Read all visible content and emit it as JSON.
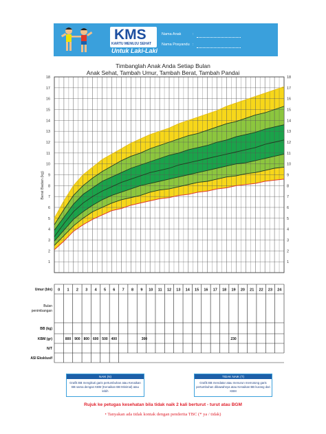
{
  "header": {
    "logo_title": "KMS",
    "logo_subtitle": "KARTU MENUJU SEHAT",
    "logo_gender": "Untuk Laki-Laki",
    "name_label": "Nama Anak",
    "posyandu_label": "Nama Posyandu",
    "colon": ":"
  },
  "chart_title_line1": "Timbanglah Anak Anda Setiap Bulan",
  "chart_title_line2": "Anak Sehat, Tambah Umur, Tambah Berat, Tambah Pandai",
  "chart_data": {
    "type": "area",
    "xlabel": "Umur (bln)",
    "ylabel": "Berat Badan (kg)",
    "xlim": [
      0,
      24
    ],
    "ylim": [
      0,
      18
    ],
    "x_ticks": [
      0,
      1,
      2,
      3,
      4,
      5,
      6,
      7,
      8,
      9,
      10,
      11,
      12,
      13,
      14,
      15,
      16,
      17,
      18,
      19,
      20,
      21,
      22,
      23,
      24
    ],
    "y_ticks": [
      1,
      2,
      3,
      4,
      5,
      6,
      7,
      8,
      9,
      10,
      11,
      12,
      13,
      14,
      15,
      16,
      17,
      18
    ],
    "grid": true,
    "x": [
      0,
      1,
      2,
      3,
      4,
      5,
      6,
      7,
      8,
      9,
      10,
      11,
      12,
      13,
      14,
      15,
      16,
      17,
      18,
      19,
      20,
      21,
      22,
      23,
      24
    ],
    "series": [
      {
        "values": [
          2.1,
          2.9,
          3.8,
          4.4,
          4.9,
          5.3,
          5.7,
          5.9,
          6.2,
          6.4,
          6.6,
          6.8,
          6.9,
          7.1,
          7.2,
          7.4,
          7.5,
          7.7,
          7.8,
          8.0,
          8.1,
          8.2,
          8.4,
          8.5,
          8.6
        ],
        "color": "#e03a2a"
      },
      {
        "values": [
          2.5,
          3.4,
          4.3,
          5.0,
          5.6,
          6.0,
          6.4,
          6.7,
          6.9,
          7.1,
          7.4,
          7.6,
          7.7,
          7.9,
          8.1,
          8.3,
          8.4,
          8.6,
          8.8,
          8.9,
          9.1,
          9.2,
          9.4,
          9.6,
          9.7
        ],
        "color": "#1f3d1f"
      },
      {
        "values": [
          2.9,
          3.9,
          4.9,
          5.6,
          6.2,
          6.7,
          7.1,
          7.4,
          7.7,
          8.0,
          8.2,
          8.4,
          8.6,
          8.8,
          9.0,
          9.2,
          9.4,
          9.6,
          9.8,
          10.0,
          10.1,
          10.3,
          10.5,
          10.7,
          10.9
        ],
        "color": "#1f3d1f"
      },
      {
        "values": [
          3.3,
          4.5,
          5.6,
          6.4,
          7.0,
          7.5,
          7.9,
          8.3,
          8.6,
          8.9,
          9.2,
          9.4,
          9.6,
          9.9,
          10.1,
          10.3,
          10.5,
          10.7,
          10.9,
          11.1,
          11.3,
          11.5,
          11.8,
          12.0,
          12.2
        ],
        "color": "#1f3d1f"
      },
      {
        "values": [
          3.9,
          5.1,
          6.3,
          7.2,
          7.8,
          8.4,
          8.8,
          9.2,
          9.6,
          9.9,
          10.2,
          10.5,
          10.8,
          11.0,
          11.3,
          11.5,
          11.7,
          12.0,
          12.2,
          12.5,
          12.7,
          12.9,
          13.2,
          13.4,
          13.6
        ],
        "color": "#1f3d1f"
      },
      {
        "values": [
          4.4,
          5.8,
          7.1,
          8.0,
          8.7,
          9.3,
          9.8,
          10.3,
          10.7,
          11.0,
          11.4,
          11.7,
          12.0,
          12.3,
          12.6,
          12.8,
          13.1,
          13.4,
          13.7,
          13.9,
          14.2,
          14.5,
          14.7,
          15.0,
          15.3
        ],
        "color": "#1f3d1f"
      },
      {
        "values": [
          5.0,
          6.6,
          8.0,
          9.0,
          9.7,
          10.4,
          10.9,
          11.4,
          11.9,
          12.3,
          12.7,
          13.0,
          13.3,
          13.7,
          14.0,
          14.3,
          14.6,
          14.9,
          15.3,
          15.6,
          15.9,
          16.2,
          16.5,
          16.8,
          17.1
        ],
        "color": "#e8c018"
      }
    ],
    "band_colors": [
      "#f7d71a",
      "#8cc63e",
      "#1aa34a",
      "#1aa34a",
      "#8cc63e",
      "#f7d71a"
    ]
  },
  "table": {
    "age_label": "Umur (bln)",
    "ages": [
      "0",
      "1",
      "2",
      "3",
      "4",
      "5",
      "6",
      "7",
      "8",
      "9",
      "10",
      "11",
      "12",
      "13",
      "14",
      "15",
      "16",
      "17",
      "18",
      "19",
      "20",
      "21",
      "22",
      "23",
      "24"
    ],
    "bulan_label": "Bulan penimbangan",
    "bb_label": "BB (kg)",
    "kbm_label": "KBM (gr)",
    "kbm_values": [
      "800",
      "900",
      "800",
      "600",
      "500",
      "400",
      "300",
      "230"
    ],
    "nt_label": "N/T",
    "asi_label": "ASI Eksklusif"
  },
  "legend": {
    "naik_head": "NAIK (N)",
    "naik_text": "Grafik BB mengikuti garis pertumbuhan atau Kenaikan BB sama dengan KBM (Kenaikan BB Minimal) atau lebih",
    "tidak_head": "TIDAK NAIK (T)",
    "tidak_text": "Grafik BB mendatar atau menurun memotong garis pertumbuhan dibawahnya atau Kenaikan BB kurang dari KBM"
  },
  "warning_text": "Rujuk ke petugas kesehatan bila tidak naik 2 kali berturut - turut atau BGM",
  "note_text": "Tanyakan ada tidak kontak dengan penderita TBC (* ya / tidak)",
  "note_bullet": "•"
}
